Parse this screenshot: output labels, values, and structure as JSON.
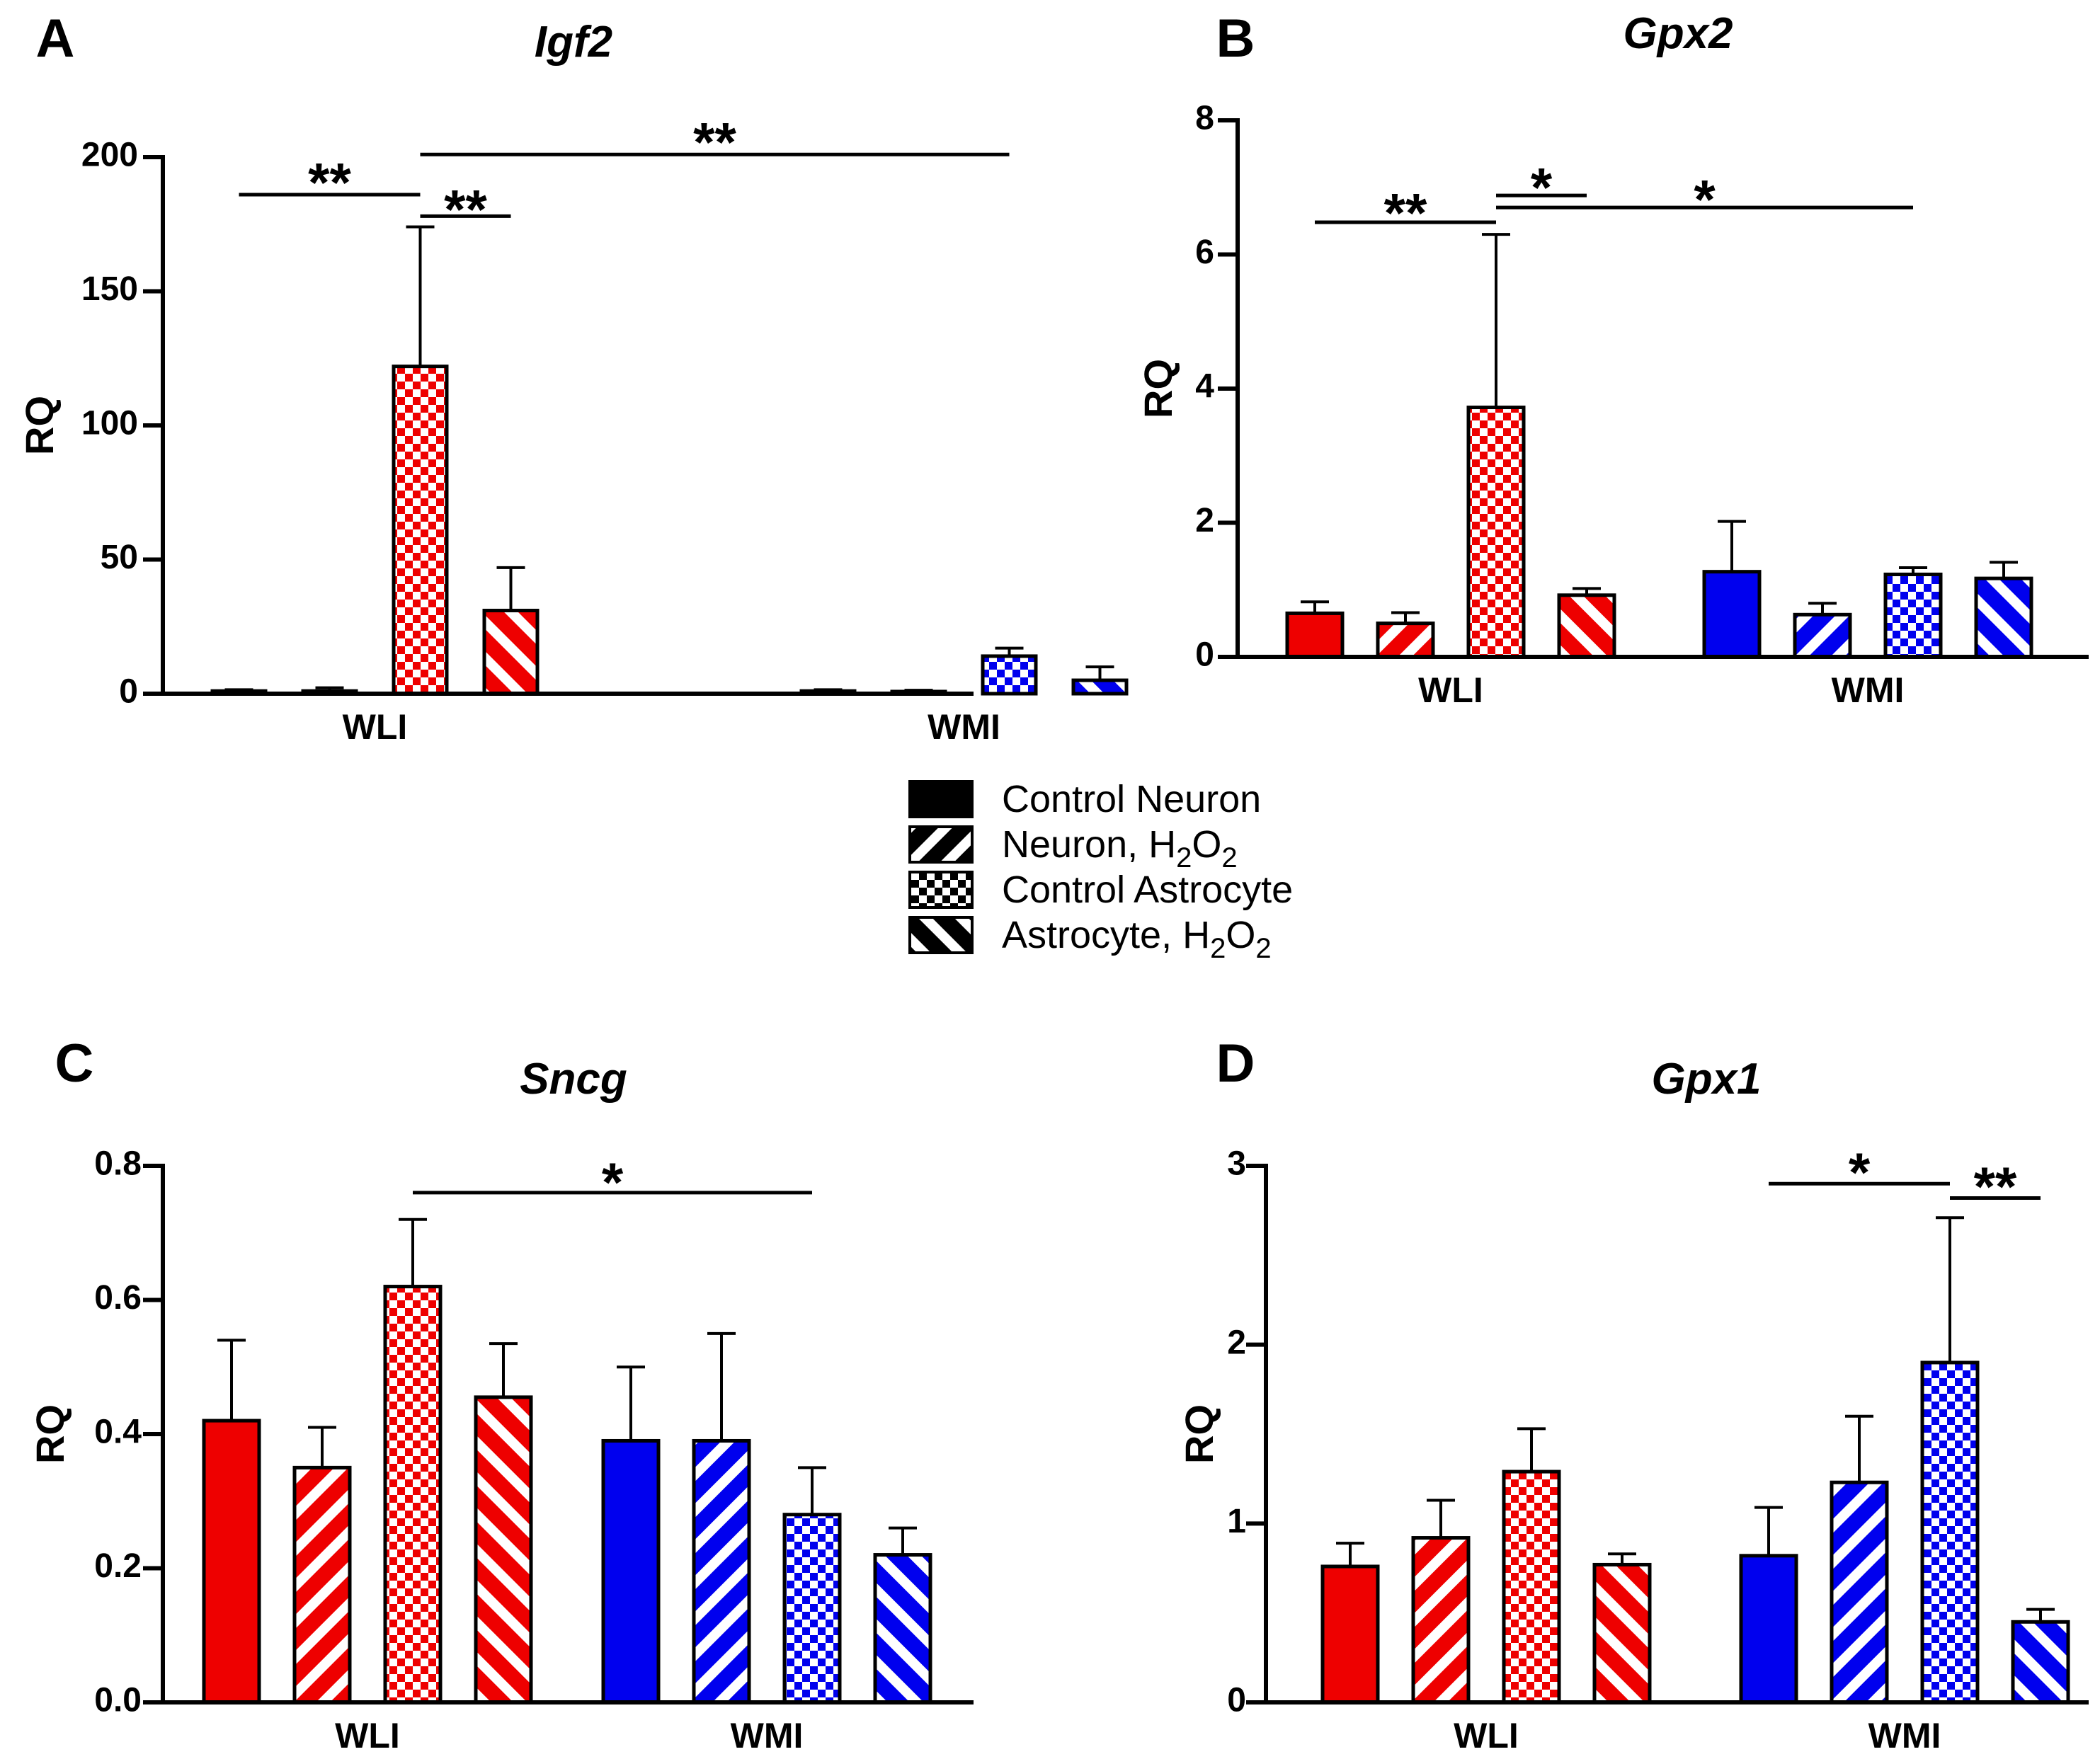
{
  "figure": {
    "legend": [
      {
        "label": "Control Neuron",
        "pattern": "solid"
      },
      {
        "label": "Neuron, H",
        "sub1": "2",
        "mid": "O",
        "sub2": "2",
        "pattern": "diag-up"
      },
      {
        "label": "Control Astrocyte",
        "pattern": "checker"
      },
      {
        "label": "Astrocyte, H",
        "sub1": "2",
        "mid": "O",
        "sub2": "2",
        "pattern": "diag-down"
      }
    ],
    "colors": {
      "WLI": "#ee0000",
      "WMI": "#0000ee",
      "axis": "#000000",
      "legend_fill": "#000000"
    }
  },
  "chart_data": [
    {
      "panel": "A",
      "type": "bar",
      "title": "Igf2",
      "ylabel": "RQ",
      "xlabel": "",
      "ylim": [
        0,
        200
      ],
      "yticks": [
        0,
        50,
        100,
        150,
        200
      ],
      "ytick_labels": [
        "0",
        "50",
        "100",
        "150",
        "200"
      ],
      "categories": [
        "WLI",
        "WMI"
      ],
      "series": [
        {
          "name": "Control Neuron",
          "values": [
            1.0,
            1.0
          ],
          "errors": [
            0.5,
            0.5
          ]
        },
        {
          "name": "Neuron, H2O2",
          "values": [
            1.0,
            0.8
          ],
          "errors": [
            1.2,
            0.5
          ]
        },
        {
          "name": "Control Astrocyte",
          "values": [
            122,
            14
          ],
          "errors": [
            52,
            3
          ]
        },
        {
          "name": "Astrocyte, H2O2",
          "values": [
            31,
            5
          ],
          "errors": [
            16,
            5
          ]
        }
      ],
      "significance": [
        {
          "label": "**",
          "from": [
            0,
            0
          ],
          "to": [
            0,
            2
          ],
          "y": 186,
          "text_y": 193
        },
        {
          "label": "**",
          "from": [
            0,
            2
          ],
          "to": [
            0,
            3
          ],
          "y": 178,
          "text_y": 183
        },
        {
          "label": "**",
          "from": [
            0,
            2
          ],
          "to": [
            1,
            2
          ],
          "y": 201,
          "text_y": 208
        }
      ]
    },
    {
      "panel": "B",
      "type": "bar",
      "title": "Gpx2",
      "ylabel": "RQ",
      "xlabel": "",
      "ylim": [
        0,
        8
      ],
      "yticks": [
        0,
        2,
        4,
        6,
        8
      ],
      "ytick_labels": [
        "0",
        "2",
        "4",
        "6",
        "8"
      ],
      "categories": [
        "WLI",
        "WMI"
      ],
      "series": [
        {
          "name": "Control Neuron",
          "values": [
            0.65,
            1.27
          ],
          "errors": [
            0.17,
            0.75
          ]
        },
        {
          "name": "Neuron, H2O2",
          "values": [
            0.5,
            0.63
          ],
          "errors": [
            0.16,
            0.17
          ]
        },
        {
          "name": "Control Astrocyte",
          "values": [
            3.72,
            1.23
          ],
          "errors": [
            2.58,
            0.1
          ]
        },
        {
          "name": "Astrocyte, H2O2",
          "values": [
            0.92,
            1.17
          ],
          "errors": [
            0.1,
            0.24
          ]
        }
      ],
      "significance": [
        {
          "label": "**",
          "from": [
            0,
            0
          ],
          "to": [
            0,
            2
          ],
          "y": 6.48,
          "text_y": 6.72
        },
        {
          "label": "*",
          "from": [
            0,
            2
          ],
          "to": [
            0,
            3
          ],
          "y": 6.88,
          "text_y": 7.1
        },
        {
          "label": "*",
          "from": [
            0,
            2
          ],
          "to": [
            1,
            2
          ],
          "y": 6.7,
          "text_y": 6.92
        }
      ]
    },
    {
      "panel": "C",
      "type": "bar",
      "title": "Sncg",
      "ylabel": "RQ",
      "xlabel": "",
      "ylim": [
        0,
        0.8
      ],
      "yticks": [
        0,
        0.2,
        0.4,
        0.6,
        0.8
      ],
      "ytick_labels": [
        "0.0",
        "0.2",
        "0.4",
        "0.6",
        "0.8"
      ],
      "categories": [
        "WLI",
        "WMI"
      ],
      "series": [
        {
          "name": "Control Neuron",
          "values": [
            0.42,
            0.39
          ],
          "errors": [
            0.12,
            0.11
          ]
        },
        {
          "name": "Neuron, H2O2",
          "values": [
            0.35,
            0.39
          ],
          "errors": [
            0.06,
            0.16
          ]
        },
        {
          "name": "Control Astrocyte",
          "values": [
            0.62,
            0.28
          ],
          "errors": [
            0.1,
            0.07
          ]
        },
        {
          "name": "Astrocyte, H2O2",
          "values": [
            0.455,
            0.22
          ],
          "errors": [
            0.08,
            0.04
          ]
        }
      ],
      "significance": [
        {
          "label": "*",
          "from": [
            0,
            2
          ],
          "to": [
            1,
            2
          ],
          "y": 0.76,
          "text_y": 0.785
        }
      ]
    },
    {
      "panel": "D",
      "type": "bar",
      "title": "Gpx1",
      "ylabel": "RQ",
      "xlabel": "",
      "ylim": [
        0,
        3
      ],
      "yticks": [
        0,
        1,
        2,
        3
      ],
      "ytick_labels": [
        "0",
        "1",
        "2",
        "3"
      ],
      "categories": [
        "WLI",
        "WMI"
      ],
      "series": [
        {
          "name": "Control Neuron",
          "values": [
            0.76,
            0.82
          ],
          "errors": [
            0.13,
            0.27
          ]
        },
        {
          "name": "Neuron, H2O2",
          "values": [
            0.92,
            1.23
          ],
          "errors": [
            0.21,
            0.37
          ]
        },
        {
          "name": "Control Astrocyte",
          "values": [
            1.29,
            1.9
          ],
          "errors": [
            0.24,
            0.81
          ]
        },
        {
          "name": "Astrocyte, H2O2",
          "values": [
            0.77,
            0.45
          ],
          "errors": [
            0.06,
            0.07
          ]
        }
      ],
      "significance": [
        {
          "label": "*",
          "from": [
            1,
            0
          ],
          "to": [
            1,
            2
          ],
          "y": 2.9,
          "text_y": 3.0
        },
        {
          "label": "**",
          "from": [
            1,
            2
          ],
          "to": [
            1,
            3
          ],
          "y": 2.82,
          "text_y": 2.92
        }
      ]
    }
  ]
}
